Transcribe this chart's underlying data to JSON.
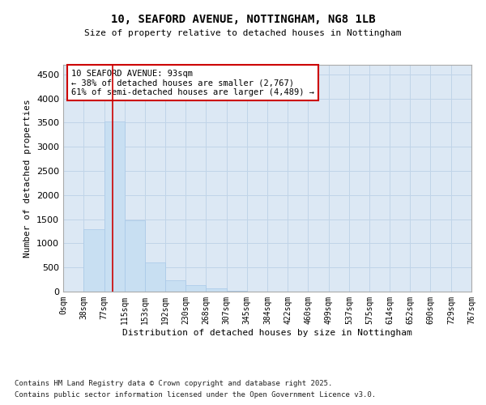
{
  "title_line1": "10, SEAFORD AVENUE, NOTTINGHAM, NG8 1LB",
  "title_line2": "Size of property relative to detached houses in Nottingham",
  "xlabel": "Distribution of detached houses by size in Nottingham",
  "ylabel": "Number of detached properties",
  "annotation_line1": "10 SEAFORD AVENUE: 93sqm",
  "annotation_line2": "← 38% of detached houses are smaller (2,767)",
  "annotation_line3": "61% of semi-detached houses are larger (4,489) →",
  "property_size": 93,
  "bar_color": "#c8dff2",
  "bar_edgecolor": "#a8c8e8",
  "line_color": "#cc0000",
  "grid_color": "#c0d4e8",
  "background_color": "#dce8f4",
  "ylim": [
    0,
    4700
  ],
  "yticks": [
    0,
    500,
    1000,
    1500,
    2000,
    2500,
    3000,
    3500,
    4000,
    4500
  ],
  "bin_starts": [
    0,
    38,
    77,
    115,
    153,
    192,
    230,
    268,
    307,
    345,
    384,
    422,
    460,
    499,
    537,
    575,
    614,
    652,
    690,
    729,
    767
  ],
  "bin_labels": [
    "0sqm",
    "38sqm",
    "77sqm",
    "115sqm",
    "153sqm",
    "192sqm",
    "230sqm",
    "268sqm",
    "307sqm",
    "345sqm",
    "384sqm",
    "422sqm",
    "460sqm",
    "499sqm",
    "537sqm",
    "575sqm",
    "614sqm",
    "652sqm",
    "690sqm",
    "729sqm",
    "767sqm"
  ],
  "bar_heights": [
    0,
    1290,
    3530,
    1480,
    600,
    240,
    135,
    60,
    25,
    8,
    4,
    3,
    2,
    0,
    0,
    0,
    0,
    0,
    0,
    0,
    0
  ],
  "footnote_line1": "Contains HM Land Registry data © Crown copyright and database right 2025.",
  "footnote_line2": "Contains public sector information licensed under the Open Government Licence v3.0."
}
